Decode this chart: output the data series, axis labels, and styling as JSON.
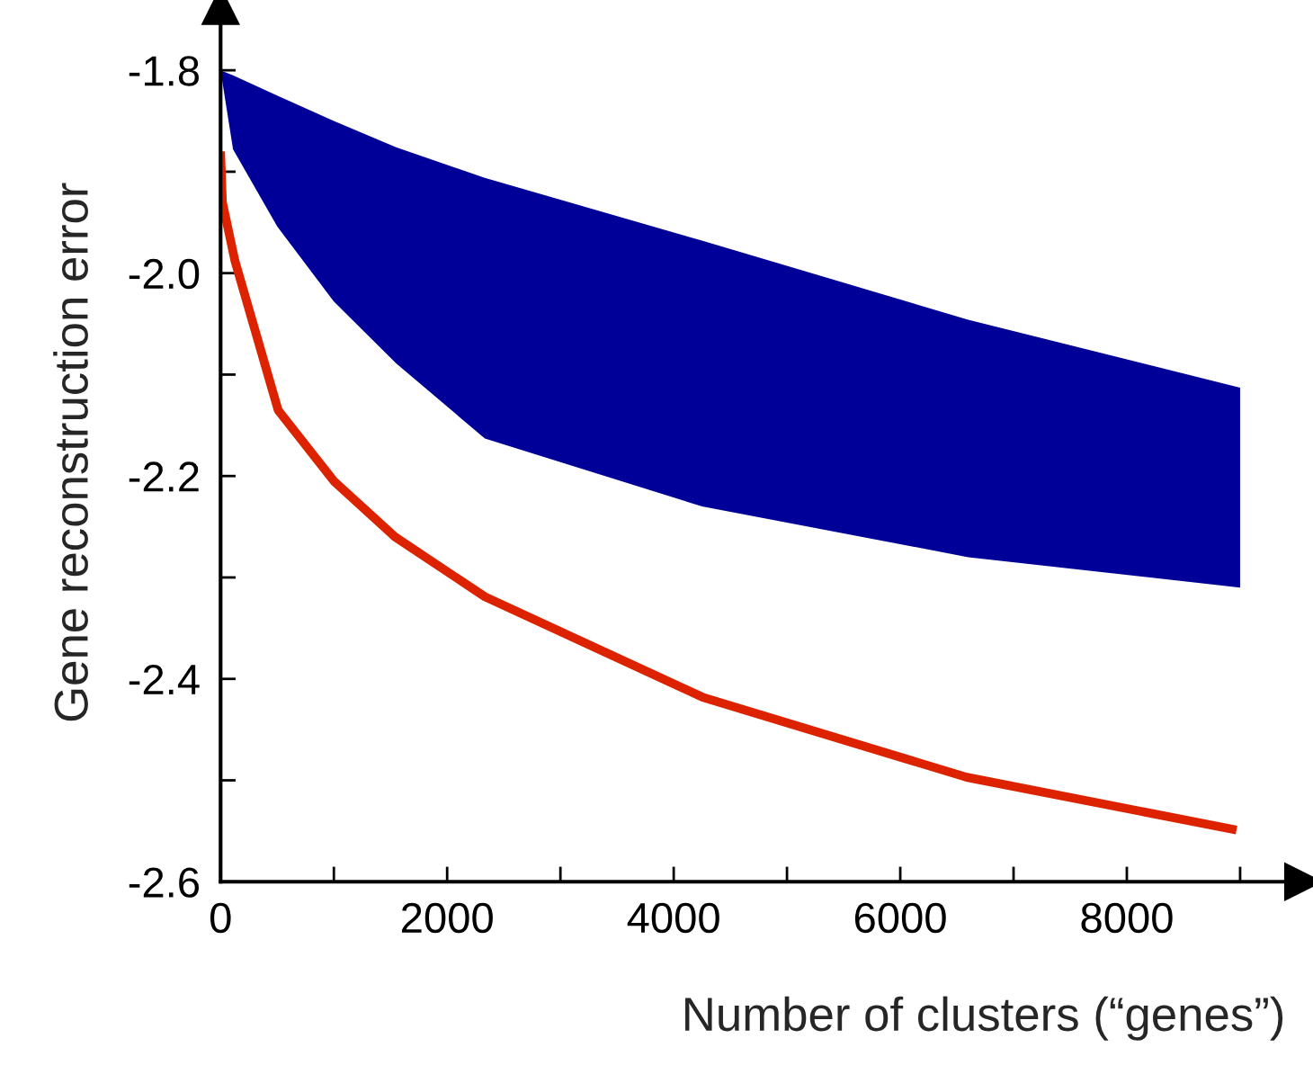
{
  "chart_data": {
    "type": "line",
    "xlabel": "Number of clusters (“genes”)",
    "ylabel": "Gene reconstruction error",
    "xlim": [
      0,
      9400
    ],
    "ylim": [
      -2.6,
      -1.754
    ],
    "xticks": [
      0,
      {
        "value": 1000,
        "label": null
      },
      2000,
      {
        "value": 3000,
        "label": null
      },
      4000,
      {
        "value": 5000,
        "label": null
      },
      6000,
      {
        "value": 7000,
        "label": null
      },
      8000,
      {
        "value": 9000,
        "label": null
      }
    ],
    "yticks": [
      {
        "value": -2.6,
        "label": "-2.6"
      },
      {
        "value": -2.5,
        "label": null
      },
      {
        "value": -2.4,
        "label": "-2.4"
      },
      {
        "value": -2.3,
        "label": null
      },
      {
        "value": -2.2,
        "label": "-2.2"
      },
      {
        "value": -2.1,
        "label": null
      },
      {
        "value": -2.0,
        "label": "-2.0"
      },
      {
        "value": -1.9,
        "label": null
      },
      {
        "value": -1.8,
        "label": "-1.8"
      }
    ],
    "grid": false,
    "legend": false,
    "series": [
      {
        "type": "area",
        "color": "#000099",
        "x": [
          0,
          110,
          500,
          1000,
          1550,
          2333,
          4250,
          6600,
          9000
        ],
        "values": [
          null,
          null,
          null,
          null,
          null,
          null,
          null,
          null,
          null
        ],
        "upper": [
          -1.8,
          -1.805,
          -1.825,
          -1.85,
          -1.876,
          -1.906,
          -1.968,
          -2.046,
          -2.113
        ],
        "lower": [
          -1.8,
          -1.878,
          -1.954,
          -2.028,
          -2.089,
          -2.163,
          -2.23,
          -2.28,
          -2.31
        ]
      },
      {
        "color": "#dd2200",
        "x": [
          0,
          16,
          127,
          508,
          1000,
          1540,
          2333,
          4254,
          6587,
          8968
        ],
        "values": [
          -1.88,
          -1.93,
          -1.988,
          -2.135,
          -2.205,
          -2.26,
          -2.319,
          -2.418,
          -2.497,
          -2.549
        ]
      }
    ]
  }
}
